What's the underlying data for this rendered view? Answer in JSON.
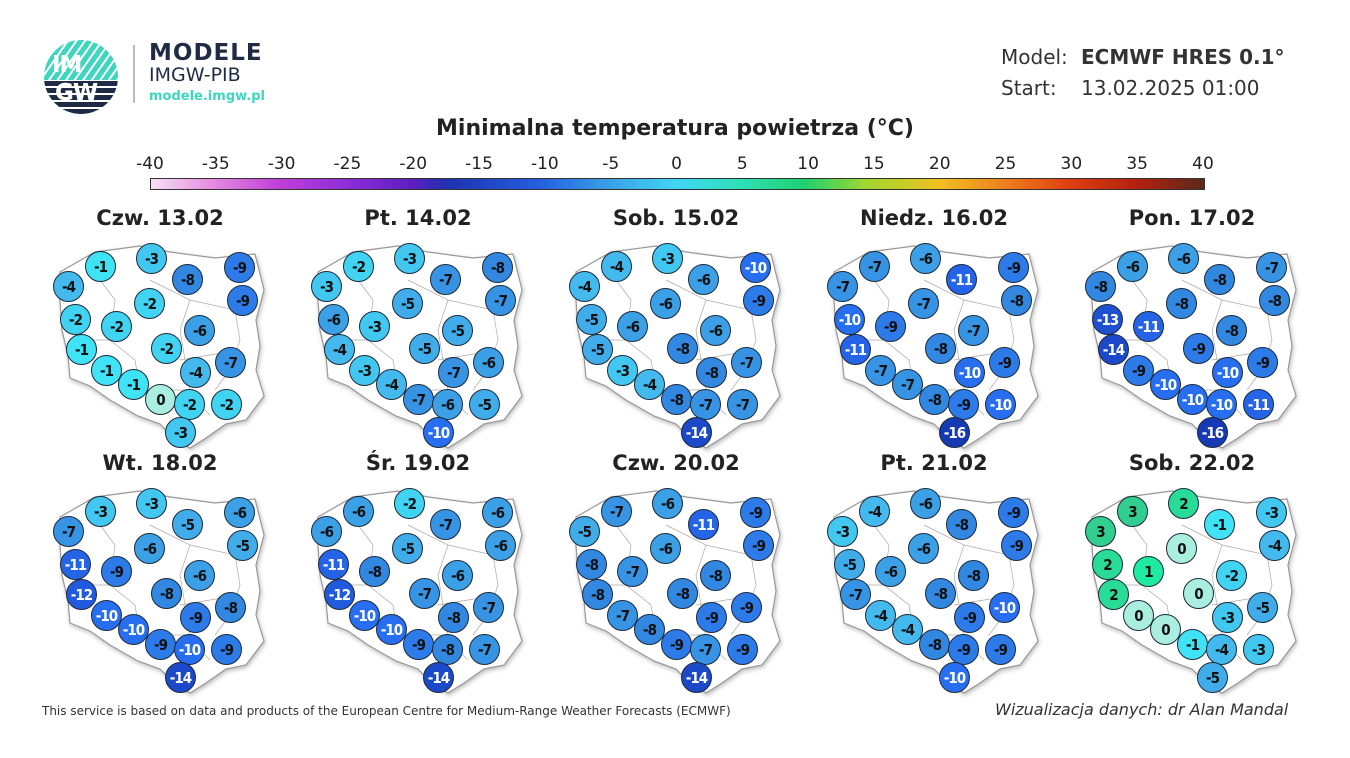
{
  "logo": {
    "mark_top": "IM",
    "mark_bottom": "GW",
    "title": "MODELE",
    "subtitle": "IMGW-PIB",
    "url": "modele.imgw.pl"
  },
  "meta": {
    "model_label": "Model:",
    "model_value": "ECMWF HRES 0.1°",
    "start_label": "Start:",
    "start_value": "13.02.2025 01:00"
  },
  "footer": {
    "source": "This service is based on data and products of the European Centre for Medium-Range Weather Forecasts (ECMWF)",
    "credit": "Wizualizacja danych: dr Alan Mandal"
  },
  "chart_data": {
    "type": "map-values",
    "title": "Minimalna temperatura powietrza (°C)",
    "colorbar": {
      "ticks": [
        "-40",
        "-35",
        "-30",
        "-25",
        "-20",
        "-15",
        "-10",
        "-5",
        "0",
        "5",
        "10",
        "15",
        "20",
        "25",
        "30",
        "35",
        "40"
      ],
      "range": [
        -40,
        40
      ]
    },
    "maps": [
      {
        "title": "Czw. 13.02",
        "values": [
          -4,
          -1,
          -3,
          -8,
          -9,
          -9,
          -2,
          -2,
          -2,
          -6,
          -1,
          -2,
          -7,
          -1,
          -4,
          -1,
          0,
          -2,
          -2,
          -3
        ]
      },
      {
        "title": "Pt. 14.02",
        "values": [
          -3,
          -2,
          -3,
          -7,
          -8,
          -7,
          -6,
          -3,
          -5,
          -5,
          -4,
          -5,
          -6,
          -3,
          -7,
          -4,
          -7,
          -6,
          -5,
          -10
        ]
      },
      {
        "title": "Sob. 15.02",
        "values": [
          -4,
          -4,
          -3,
          -6,
          -10,
          -9,
          -5,
          -6,
          -6,
          -6,
          -5,
          -8,
          -7,
          -3,
          -8,
          -4,
          -8,
          -7,
          -7,
          -14
        ]
      },
      {
        "title": "Niedz. 16.02",
        "values": [
          -7,
          -7,
          -6,
          -11,
          -9,
          -8,
          -10,
          -9,
          -7,
          -7,
          -11,
          -8,
          -9,
          -7,
          -10,
          -7,
          -8,
          -9,
          -10,
          -16
        ]
      },
      {
        "title": "Pon. 17.02",
        "values": [
          -8,
          -6,
          -6,
          -8,
          -7,
          -8,
          -13,
          -11,
          -8,
          -8,
          -14,
          -9,
          -9,
          -9,
          -10,
          -10,
          -10,
          -10,
          -11,
          -16
        ]
      },
      {
        "title": "Wt. 18.02",
        "values": [
          -7,
          -3,
          -3,
          -5,
          -6,
          -5,
          -11,
          -9,
          -6,
          -6,
          -12,
          -8,
          -8,
          -10,
          -9,
          -10,
          -9,
          -10,
          -9,
          -14
        ]
      },
      {
        "title": "Śr. 19.02",
        "values": [
          -6,
          -6,
          -2,
          -7,
          -6,
          -6,
          -11,
          -8,
          -5,
          -6,
          -12,
          -7,
          -7,
          -10,
          -8,
          -10,
          -9,
          -8,
          -7,
          -14
        ]
      },
      {
        "title": "Czw. 20.02",
        "values": [
          -5,
          -7,
          -6,
          -11,
          -9,
          -9,
          -8,
          -7,
          -6,
          -8,
          -8,
          -8,
          -9,
          -7,
          -9,
          -8,
          -9,
          -7,
          -9,
          -14
        ]
      },
      {
        "title": "Pt. 21.02",
        "values": [
          -3,
          -4,
          -6,
          -8,
          -9,
          -9,
          -5,
          -6,
          -6,
          -8,
          -7,
          -8,
          -10,
          -4,
          -9,
          -4,
          -8,
          -9,
          -9,
          -10
        ]
      },
      {
        "title": "Sob. 22.02",
        "values": [
          3,
          3,
          2,
          -1,
          -3,
          -4,
          2,
          1,
          0,
          -2,
          2,
          0,
          -5,
          0,
          -3,
          0,
          -1,
          -4,
          -3,
          -5
        ]
      }
    ]
  }
}
